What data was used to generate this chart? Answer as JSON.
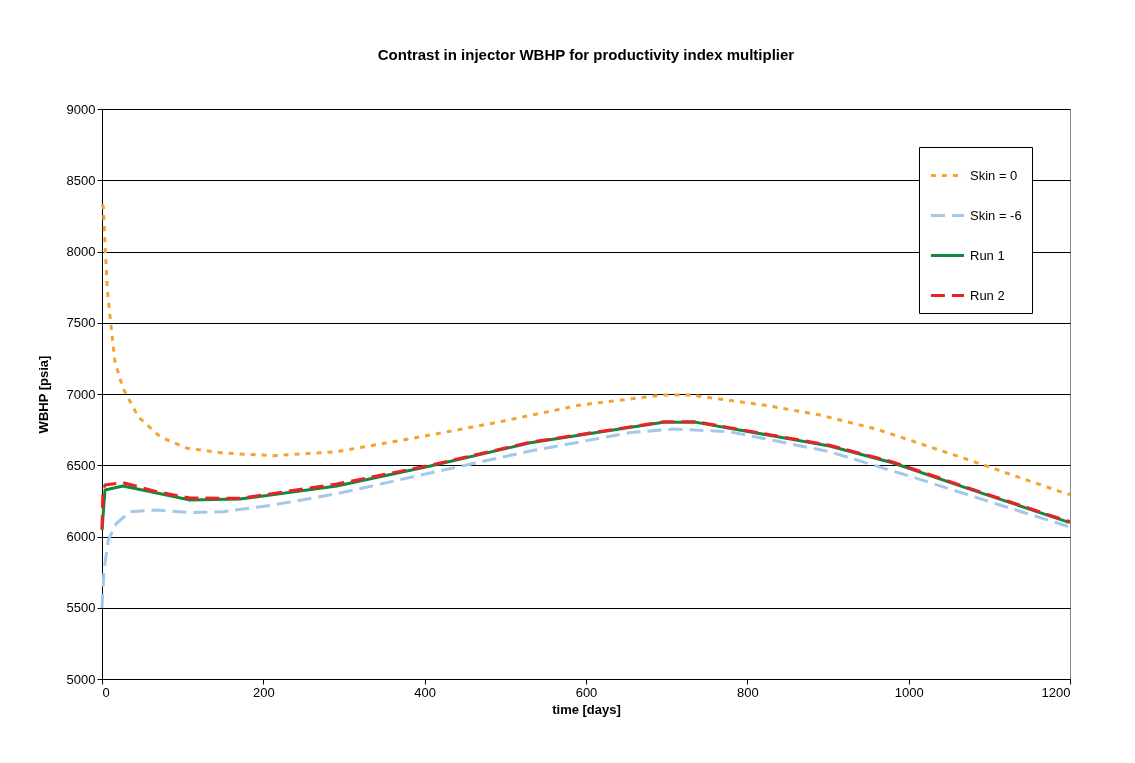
{
  "chart_data": {
    "type": "line",
    "title": "Contrast in injector WBHP for productivity index multiplier",
    "xlabel": "time [days]",
    "ylabel": "WBHP [psia]",
    "xlim": [
      0,
      1200
    ],
    "xticks": [
      0,
      200,
      400,
      600,
      800,
      1000,
      1200
    ],
    "ylim": [
      5000,
      9000
    ],
    "yticks": [
      5000,
      5500,
      6000,
      6500,
      7000,
      7500,
      8000,
      8500,
      9000
    ],
    "grid": "y",
    "legend": "top right",
    "marker": "none",
    "series": [
      {
        "name": "Skin = 0",
        "color": "#f7a12f",
        "line_style": "dotted",
        "x": [
          0,
          1.6,
          3.7,
          6.6,
          10.8,
          16,
          26,
          45,
          72,
          105,
          150,
          212,
          291,
          386,
          489,
          593,
          696,
          729,
          820,
          890,
          960,
          1068,
          1188,
          1200
        ],
        "values": [
          8330,
          8314,
          8060,
          7730,
          7498,
          7227,
          7040,
          6840,
          6700,
          6620,
          6586,
          6567,
          6595,
          6690,
          6800,
          6923,
          6993,
          6993,
          6923,
          6853,
          6754,
          6550,
          6315,
          6295
        ]
      },
      {
        "name": "Skin = -6",
        "color": "#a4c8ea",
        "line_style": "dashed",
        "x": [
          0,
          2.5,
          7.8,
          18,
          35,
          68,
          109,
          150,
          212,
          291,
          407,
          531,
          655,
          708,
          778,
          902,
          1010,
          1113,
          1196,
          1200
        ],
        "values": [
          5500,
          5765,
          5975,
          6093,
          6174,
          6186,
          6168,
          6174,
          6221,
          6300,
          6446,
          6600,
          6729,
          6754,
          6735,
          6595,
          6408,
          6221,
          6074,
          6065
        ]
      },
      {
        "name": "Run 1",
        "color": "#14883f",
        "line_style": "solid",
        "x": [
          0,
          3.7,
          26,
          68,
          109,
          171,
          291,
          407,
          531,
          696,
          737,
          902,
          981,
          1072,
          1196,
          1200
        ],
        "values": [
          6046,
          6326,
          6354,
          6305,
          6256,
          6263,
          6354,
          6495,
          6658,
          6801,
          6801,
          6635,
          6516,
          6340,
          6104,
          6100
        ]
      },
      {
        "name": "Run 2",
        "color": "#ea2127",
        "line_style": "dashed",
        "x": [
          0,
          1,
          3.7,
          26,
          68,
          109,
          171,
          291,
          407,
          531,
          696,
          737,
          902,
          981,
          1072,
          1196,
          1200
        ],
        "values": [
          6050,
          6300,
          6361,
          6378,
          6315,
          6270,
          6268,
          6368,
          6500,
          6662,
          6805,
          6805,
          6640,
          6522,
          6345,
          6110,
          6105
        ]
      }
    ]
  }
}
